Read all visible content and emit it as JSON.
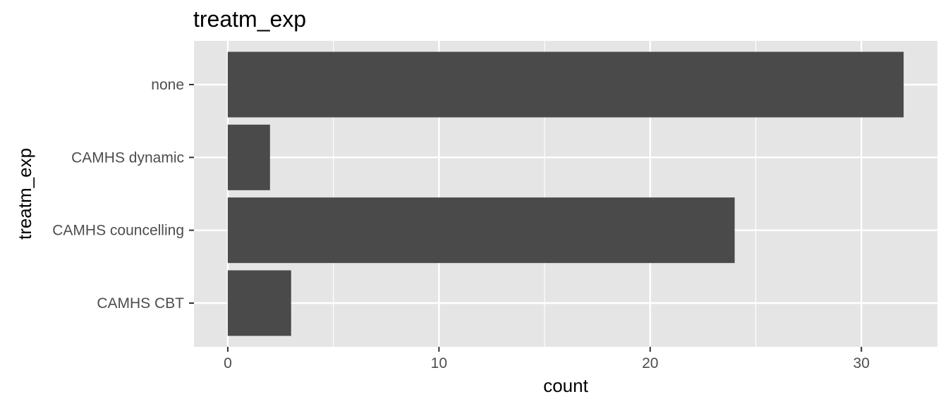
{
  "chart_data": {
    "type": "bar",
    "orientation": "horizontal",
    "title": "treatm_exp",
    "xlabel": "count",
    "ylabel": "treatm_exp",
    "categories": [
      "CAMHS CBT",
      "CAMHS councelling",
      "CAMHS dynamic",
      "none"
    ],
    "values": [
      3,
      24,
      2,
      32
    ],
    "xlim": [
      -1.6,
      33.6
    ],
    "x_ticks": [
      0,
      10,
      20,
      30
    ],
    "x_minor_ticks": [
      5,
      15,
      25
    ],
    "grid": true,
    "legend": "none",
    "colors": {
      "bar": "#4a4a4a",
      "panel": "#e5e5e5",
      "grid": "#ffffff",
      "tick_text": "#4d4d4d",
      "tick_mark": "#333333"
    }
  }
}
